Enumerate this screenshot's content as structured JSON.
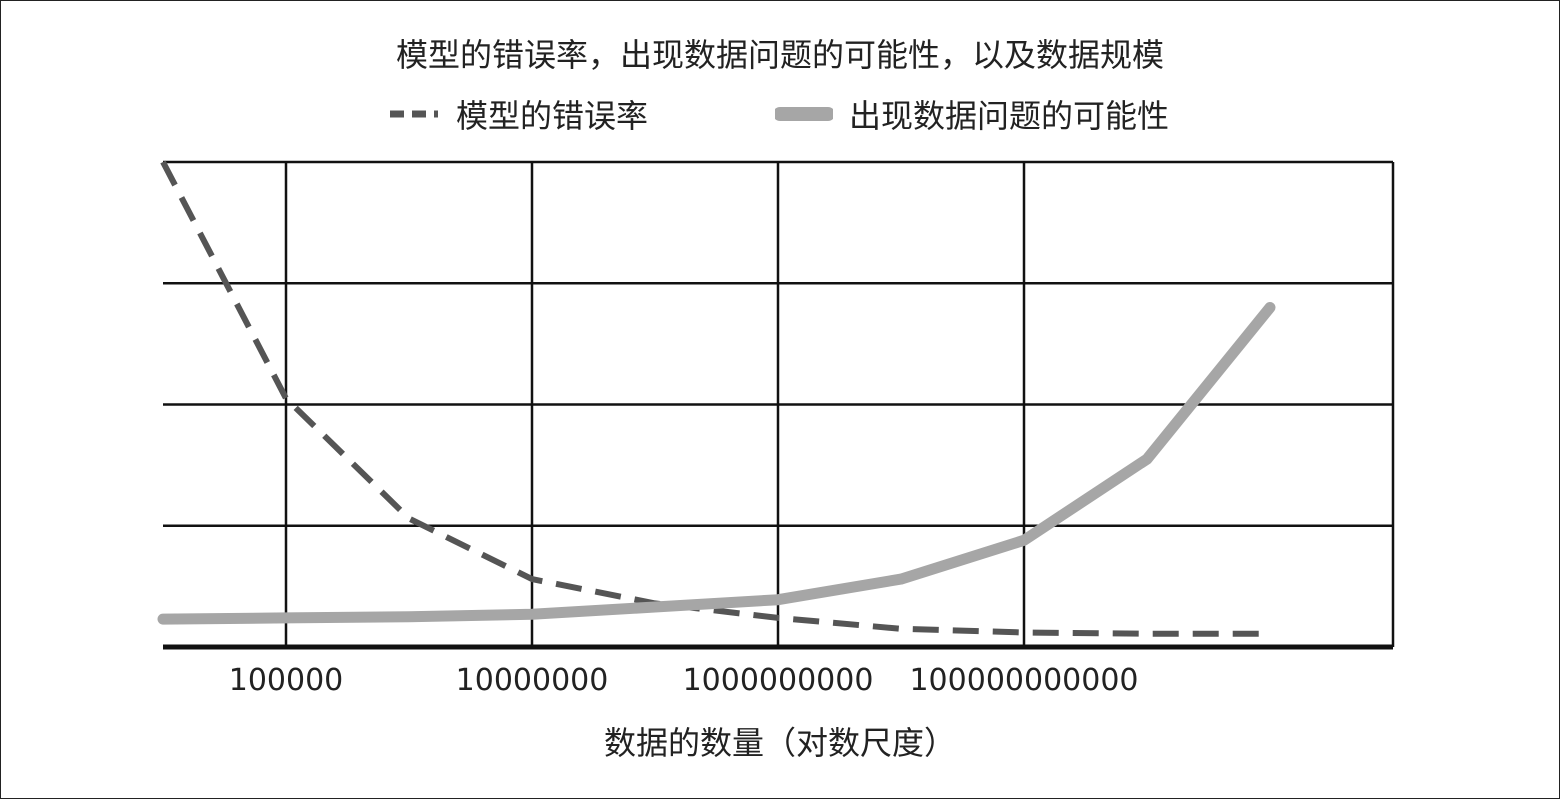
{
  "chart_data": {
    "type": "line",
    "title": "模型的错误率，出现数据问题的可能性，以及数据规模",
    "xlabel": "数据的数量（对数尺度）",
    "ylabel": "",
    "x_scale": "log",
    "xlim": [
      10000,
      100000000000000
    ],
    "ylim": [
      0,
      4
    ],
    "y_gridlines": 4,
    "grid": true,
    "legend_position": "top",
    "x_ticks": [
      {
        "value": 100000,
        "label": "100000"
      },
      {
        "value": 10000000,
        "label": "10000000"
      },
      {
        "value": 1000000000,
        "label": "1000000000"
      },
      {
        "value": 100000000000,
        "label": "100000000000"
      }
    ],
    "series": [
      {
        "name": "模型的错误率",
        "style": "dashed",
        "color": "#555555",
        "points": [
          [
            10000,
            4.0
          ],
          [
            100000,
            2.05
          ],
          [
            1000000,
            1.06
          ],
          [
            10000000,
            0.56
          ],
          [
            100000000,
            0.36
          ],
          [
            1000000000,
            0.24
          ],
          [
            10000000000,
            0.15
          ],
          [
            100000000000,
            0.12
          ],
          [
            1000000000000,
            0.11
          ],
          [
            10000000000000,
            0.11
          ]
        ]
      },
      {
        "name": "出现数据问题的可能性",
        "style": "solid",
        "color": "#a6a6a6",
        "points": [
          [
            10000,
            0.23
          ],
          [
            100000,
            0.24
          ],
          [
            1000000,
            0.25
          ],
          [
            10000000,
            0.27
          ],
          [
            100000000,
            0.33
          ],
          [
            1000000000,
            0.39
          ],
          [
            10000000000,
            0.56
          ],
          [
            100000000000,
            0.88
          ],
          [
            1000000000000,
            1.55
          ],
          [
            10000000000000,
            2.8
          ]
        ]
      }
    ]
  }
}
